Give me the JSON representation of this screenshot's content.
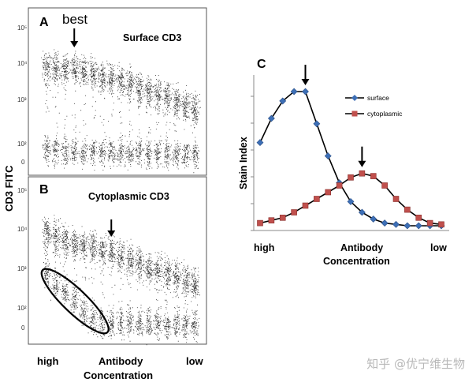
{
  "figure": {
    "y_axis_label": "CD3 FITC",
    "x_axis": {
      "left": "high",
      "middle_line1": "Antibody",
      "middle_line2": "Concentration",
      "right": "low"
    },
    "watermark": "知乎 @优宁维生物"
  },
  "panel_a": {
    "letter": "A",
    "title": "Surface CD3",
    "annotation": "best",
    "y_ticks": [
      "10⁵",
      "10⁴",
      "10³",
      "10²",
      "0"
    ]
  },
  "panel_b": {
    "letter": "B",
    "title": "Cytoplasmic CD3",
    "y_ticks": [
      "10⁵",
      "10⁴",
      "10³",
      "10²",
      "0"
    ]
  },
  "panel_c": {
    "letter": "C",
    "ylabel": "Stain Index",
    "xlabel_left": "high",
    "xlabel_mid1": "Antibody",
    "xlabel_mid2": "Concentration",
    "xlabel_right": "low"
  },
  "chart_data": [
    {
      "type": "scatter",
      "panel": "A",
      "title": "Surface CD3",
      "ylabel": "CD3 FITC",
      "y_scale": "log",
      "y_ticks": [
        "0",
        "10^2",
        "10^3",
        "10^4",
        "10^5"
      ],
      "x_order": "high to low antibody concentration",
      "columns": 17,
      "positive_log_median": [
        4.0,
        4.0,
        3.98,
        4.0,
        3.93,
        3.88,
        3.82,
        3.76,
        3.7,
        3.63,
        3.56,
        3.48,
        3.4,
        3.32,
        3.24,
        3.14,
        3.04
      ],
      "negative_log_median": [
        2.05,
        2.05,
        2.02,
        2.02,
        2.0,
        2.0,
        2.0,
        1.98,
        1.98,
        1.98,
        1.98,
        1.98,
        1.98,
        1.96,
        1.95,
        1.94,
        1.92
      ],
      "annotation": {
        "label": "best",
        "column": 3
      }
    },
    {
      "type": "scatter",
      "panel": "B",
      "title": "Cytoplasmic CD3",
      "ylabel": "CD3 FITC",
      "y_scale": "log",
      "y_ticks": [
        "0",
        "10^2",
        "10^3",
        "10^4",
        "10^5"
      ],
      "x_order": "high to low antibody concentration",
      "columns": 17,
      "positive_log_median": [
        4.1,
        4.02,
        3.92,
        3.85,
        3.8,
        3.75,
        3.7,
        3.63,
        3.55,
        3.45,
        3.35,
        3.28,
        3.2,
        3.12,
        3.05,
        2.98,
        2.9
      ],
      "negative_log_median": [
        3.1,
        2.9,
        2.7,
        2.5,
        2.2,
        2.0,
        1.98,
        1.96,
        1.95,
        1.95,
        1.94,
        1.94,
        1.93,
        1.92,
        1.92,
        1.9,
        1.9
      ],
      "arrow_column": 7,
      "ellipse_columns": [
        1,
        5
      ]
    },
    {
      "type": "line",
      "panel": "C",
      "ylabel": "Stain Index",
      "xlabel": "Antibody Concentration",
      "x_order": "high to low",
      "series": [
        {
          "name": "surface",
          "color": "#3d6fb6",
          "marker": "diamond",
          "values": [
            0.62,
            0.8,
            0.93,
            1.0,
            1.0,
            0.76,
            0.52,
            0.32,
            0.18,
            0.1,
            0.05,
            0.02,
            0.01,
            0.0,
            0.0,
            0.0,
            0.0
          ]
        },
        {
          "name": "cytoplasmic",
          "color": "#c0504d",
          "marker": "square",
          "values": [
            0.02,
            0.04,
            0.06,
            0.1,
            0.15,
            0.2,
            0.25,
            0.3,
            0.36,
            0.39,
            0.37,
            0.3,
            0.2,
            0.12,
            0.06,
            0.02,
            0.01
          ]
        }
      ],
      "arrows": [
        {
          "series": "surface",
          "index": 4
        },
        {
          "series": "cytoplasmic",
          "index": 9
        }
      ],
      "ylim": [
        0,
        1.05
      ]
    }
  ]
}
